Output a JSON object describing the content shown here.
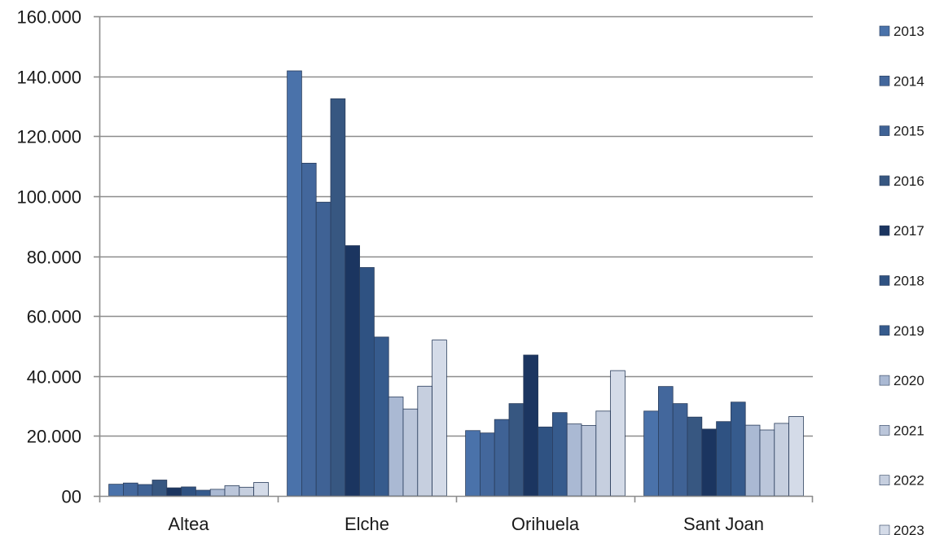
{
  "chart_data": {
    "type": "bar",
    "categories": [
      "Altea",
      "Elche",
      "Orihuela",
      "Sant Joan"
    ],
    "ylim": [
      0,
      160000
    ],
    "yticks": [
      0,
      20000,
      40000,
      60000,
      80000,
      100000,
      120000,
      140000,
      160000
    ],
    "ytick_labels": [
      "00",
      "20.000",
      "40.000",
      "60.000",
      "80.000",
      "100.000",
      "120.000",
      "140.000",
      "160.000"
    ],
    "grid": true,
    "legend_position": "right",
    "series": [
      {
        "name": "2013",
        "color": "#4a72aa",
        "values": [
          3900,
          141800,
          21800,
          28300
        ]
      },
      {
        "name": "2014",
        "color": "#43679c",
        "values": [
          4300,
          111000,
          21000,
          36500
        ]
      },
      {
        "name": "2015",
        "color": "#3f6295",
        "values": [
          3800,
          98000,
          25500,
          30800
        ]
      },
      {
        "name": "2016",
        "color": "#375781",
        "values": [
          5300,
          132500,
          30800,
          26300
        ]
      },
      {
        "name": "2017",
        "color": "#1b3560",
        "values": [
          2700,
          83500,
          47000,
          22300
        ]
      },
      {
        "name": "2018",
        "color": "#2f5282",
        "values": [
          3000,
          76200,
          23000,
          24800
        ]
      },
      {
        "name": "2019",
        "color": "#365b8d",
        "values": [
          1900,
          53000,
          27800,
          31300
        ]
      },
      {
        "name": "2020",
        "color": "#aab9d3",
        "values": [
          2200,
          33000,
          24000,
          23600
        ]
      },
      {
        "name": "2021",
        "color": "#bbc6da",
        "values": [
          3400,
          29000,
          23500,
          22000
        ]
      },
      {
        "name": "2022",
        "color": "#c6cfdf",
        "values": [
          2900,
          36600,
          28300,
          24200
        ]
      },
      {
        "name": "2023",
        "color": "#d4dbe8",
        "values": [
          4500,
          52000,
          41800,
          26500
        ]
      }
    ]
  }
}
